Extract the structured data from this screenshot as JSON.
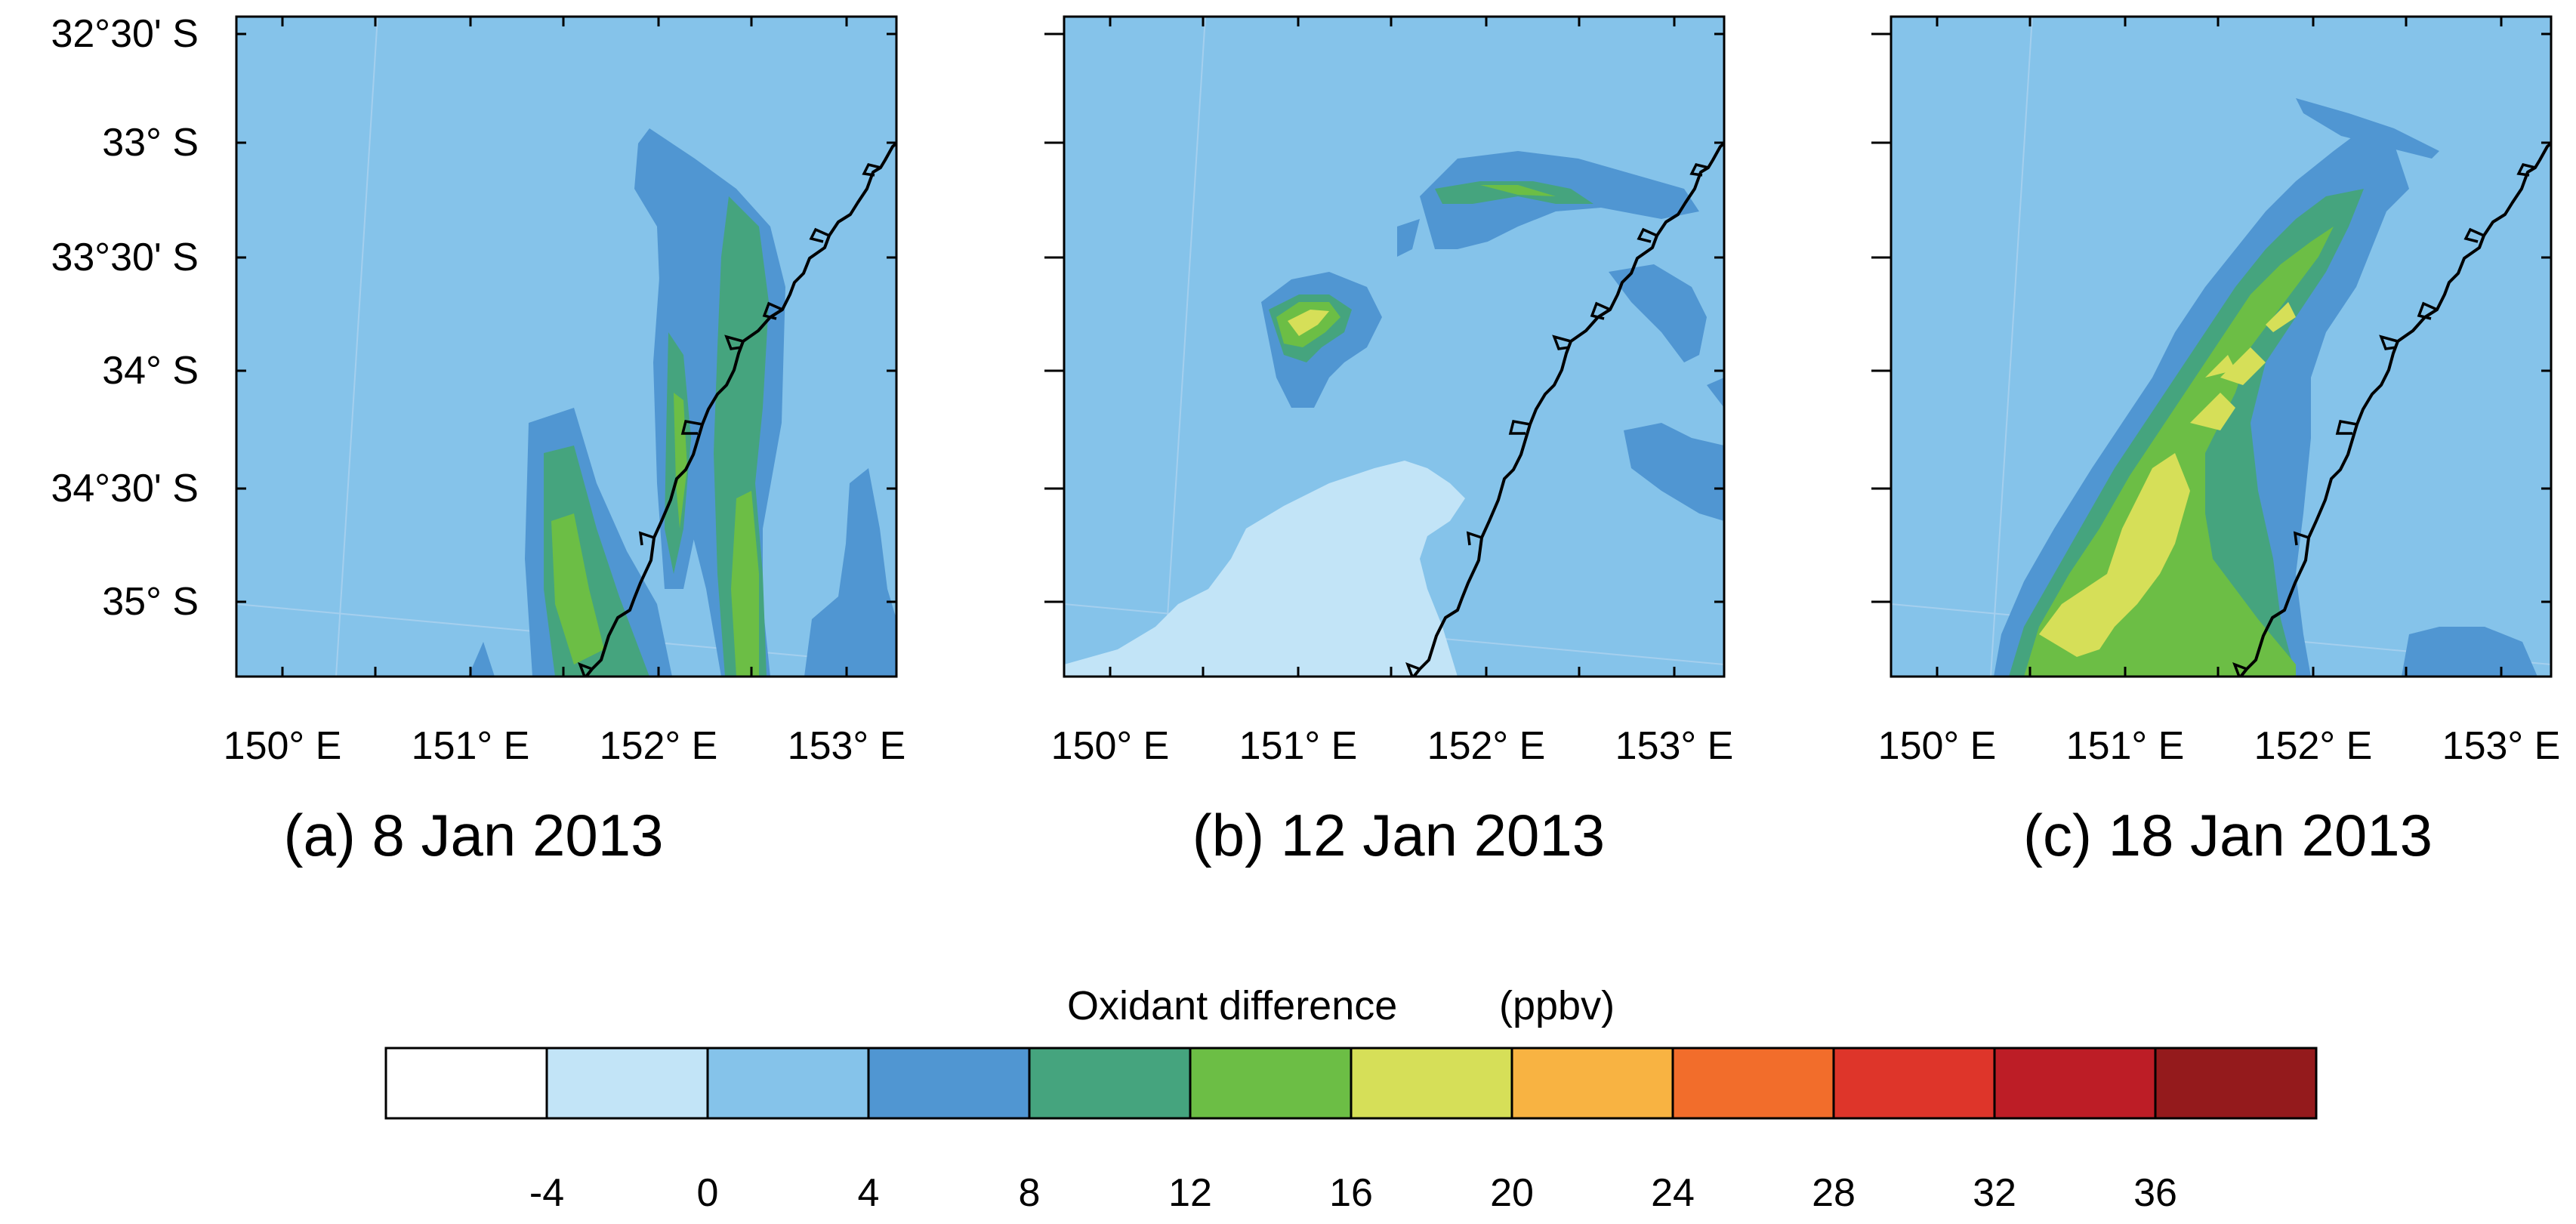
{
  "chart_data": {
    "type": "map",
    "figure_description": "Filled contour maps of oxidant difference off the New South Wales coast",
    "lat_ticks": [
      "32°30' S",
      "33° S",
      "33°30' S",
      "34° S",
      "34°30' S",
      "35° S"
    ],
    "lon_ticks": [
      "150° E",
      "151° E",
      "152° E",
      "153° E"
    ],
    "panels": [
      {
        "id": "a",
        "caption": "(a) 8 Jan 2013"
      },
      {
        "id": "b",
        "caption": "(b) 12 Jan 2013"
      },
      {
        "id": "c",
        "caption": "(c) 18 Jan 2013"
      }
    ],
    "colorbar": {
      "title": "Oxidant difference (ppbv)",
      "title_main": "Oxidant difference",
      "title_units": "(ppbv)",
      "levels": [
        "-4",
        "0",
        "4",
        "8",
        "12",
        "16",
        "20",
        "24",
        "28",
        "32",
        "36"
      ],
      "colors": [
        "#ffffff",
        "#c2e4f7",
        "#85c3ea",
        "#5096d2",
        "#45a47e",
        "#6cbe45",
        "#d6df58",
        "#f8b342",
        "#f26d2b",
        "#de352a",
        "#bd1d26",
        "#941a1c"
      ]
    }
  }
}
